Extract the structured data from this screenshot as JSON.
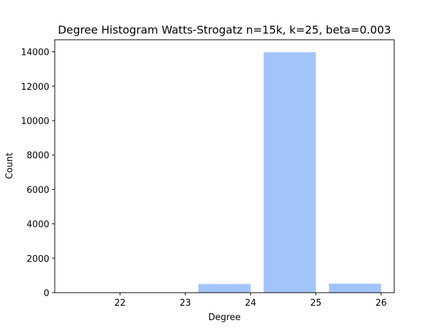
{
  "chart_data": {
    "type": "bar",
    "title": "Degree Histogram Watts-Strogatz n=15k, k=25, beta=0.003",
    "xlabel": "Degree",
    "ylabel": "Count",
    "x": [
      22,
      23,
      24,
      25
    ],
    "values": [
      0,
      500,
      13975,
      525
    ],
    "bar_color": "#a2c4fa",
    "xlim": [
      21,
      26.2
    ],
    "ylim": [
      0,
      14700
    ],
    "xticks": [
      22,
      23,
      24,
      25,
      26
    ],
    "yticks": [
      0,
      2000,
      4000,
      6000,
      8000,
      10000,
      12000,
      14000
    ],
    "grid": false,
    "legend": "none"
  }
}
